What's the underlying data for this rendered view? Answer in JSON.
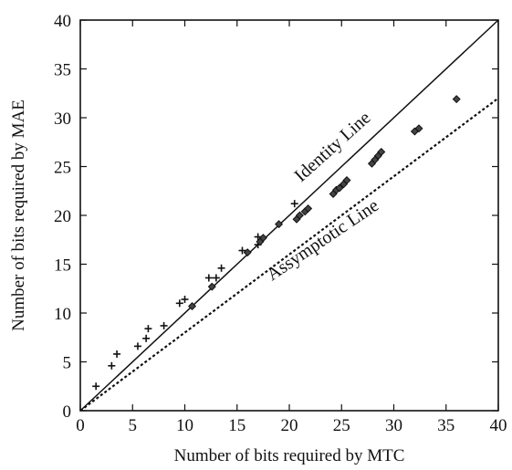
{
  "chart_data": {
    "type": "scatter",
    "title": "",
    "xlabel": "Number of bits required by MTC",
    "ylabel": "Number of bits required by MAE",
    "xlim": [
      0,
      40
    ],
    "ylim": [
      0,
      40
    ],
    "xticks": [
      0,
      5,
      10,
      15,
      20,
      25,
      30,
      35,
      40
    ],
    "yticks": [
      0,
      5,
      10,
      15,
      20,
      25,
      30,
      35,
      40
    ],
    "grid": false,
    "series": [
      {
        "marker": "plus",
        "values": [
          [
            1.5,
            2.5
          ],
          [
            3.0,
            4.6
          ],
          [
            3.5,
            5.8
          ],
          [
            5.5,
            6.6
          ],
          [
            6.3,
            7.4
          ],
          [
            6.5,
            8.4
          ],
          [
            8.0,
            8.7
          ],
          [
            9.5,
            11.0
          ],
          [
            10.0,
            11.4
          ],
          [
            12.3,
            13.6
          ],
          [
            13.0,
            13.6
          ],
          [
            13.5,
            14.6
          ],
          [
            15.5,
            16.4
          ],
          [
            17.0,
            17.0
          ],
          [
            17.0,
            17.8
          ],
          [
            20.5,
            21.2
          ]
        ]
      },
      {
        "marker": "diamond",
        "values": [
          [
            10.7,
            10.7
          ],
          [
            12.6,
            12.7
          ],
          [
            16.0,
            16.2
          ],
          [
            17.2,
            17.3
          ],
          [
            17.5,
            17.7
          ],
          [
            19.0,
            19.1
          ],
          [
            20.7,
            19.6
          ],
          [
            21.0,
            20.0
          ],
          [
            21.5,
            20.4
          ],
          [
            21.8,
            20.7
          ],
          [
            24.2,
            22.2
          ],
          [
            24.5,
            22.6
          ],
          [
            24.8,
            22.8
          ],
          [
            25.2,
            23.2
          ],
          [
            25.5,
            23.6
          ],
          [
            27.9,
            25.3
          ],
          [
            28.2,
            25.7
          ],
          [
            28.5,
            26.1
          ],
          [
            28.8,
            26.5
          ],
          [
            32.0,
            28.6
          ],
          [
            32.4,
            28.9
          ],
          [
            36.0,
            31.9
          ]
        ]
      }
    ],
    "lines": [
      {
        "name": "Identity Line",
        "style": "solid",
        "from": [
          0,
          0
        ],
        "to": [
          40,
          40
        ],
        "color": "#111111"
      },
      {
        "name": "Assymptotic Line",
        "style": "dotted",
        "from": [
          0,
          0
        ],
        "to": [
          40,
          32
        ],
        "color": "#111111"
      }
    ],
    "annotations": [
      {
        "text": "Identity Line",
        "at": [
          24.5,
          26.6
        ],
        "angle_deg": -42
      },
      {
        "text": "Assymptotic Line",
        "at": [
          23.5,
          17.0
        ],
        "angle_deg": -34
      }
    ]
  }
}
